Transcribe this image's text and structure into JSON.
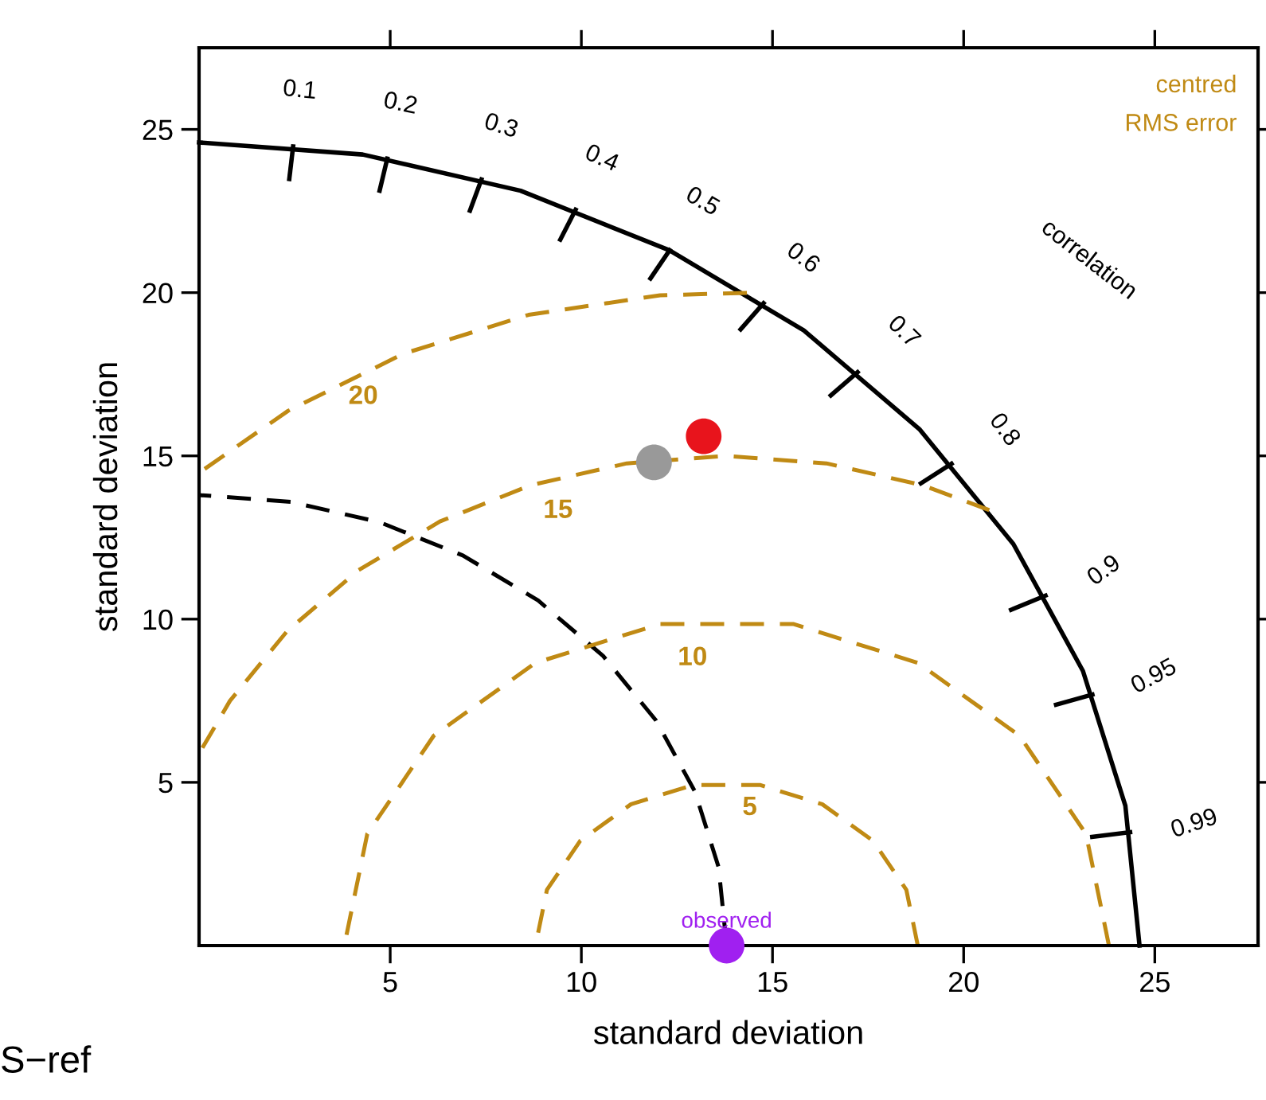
{
  "chart_data": {
    "type": "scatter",
    "xlabel": "standard deviation",
    "ylabel": "standard deviation",
    "xlim": [
      0,
      27.7
    ],
    "ylim": [
      0,
      27.5
    ],
    "xticks": [
      5,
      10,
      15,
      20,
      25
    ],
    "yticks": [
      5,
      10,
      15,
      20,
      25
    ],
    "grid": false,
    "legend": false,
    "series": [
      {
        "type": "line",
        "marker": "none",
        "color": "#000000",
        "line_style": "solid",
        "x": [
          24.6,
          24.23,
          23.12,
          21.3,
          18.84,
          15.82,
          12.3,
          8.41,
          4.28,
          0
        ],
        "values": [
          0,
          4.28,
          8.41,
          12.3,
          15.82,
          18.84,
          21.3,
          23.12,
          24.23,
          24.6
        ]
      },
      {
        "type": "line",
        "marker": "none",
        "color": "#000000",
        "line_style": "dashed",
        "x": [
          13.8,
          13.59,
          12.97,
          11.95,
          10.57,
          8.87,
          6.9,
          4.72,
          2.4,
          0
        ],
        "values": [
          0,
          2.4,
          4.72,
          6.9,
          8.87,
          10.57,
          11.95,
          12.97,
          13.59,
          13.8
        ]
      },
      {
        "type": "line",
        "marker": "none",
        "color": "#c08a14",
        "line_style": "dashed",
        "x": [
          18.8,
          18.5,
          17.63,
          16.3,
          14.67,
          12.93,
          11.3,
          9.97,
          9.1,
          8.8
        ],
        "values": [
          0,
          1.71,
          3.21,
          4.33,
          4.92,
          4.92,
          4.33,
          3.21,
          1.71,
          0
        ]
      },
      {
        "type": "line",
        "marker": "none",
        "color": "#c08a14",
        "line_style": "dashed",
        "x": [
          23.8,
          23.2,
          21.46,
          18.8,
          15.54,
          12.06,
          8.8,
          6.14,
          4.4,
          3.8
        ],
        "values": [
          0,
          3.42,
          6.43,
          8.66,
          9.85,
          9.85,
          8.66,
          6.43,
          3.42,
          0
        ]
      },
      {
        "type": "line",
        "marker": "none",
        "color": "#c08a14",
        "line_style": "dashed",
        "x": [
          20.67,
          18.93,
          16.41,
          13.8,
          11.19,
          8.67,
          6.3,
          4.16,
          2.31,
          0.81,
          0
        ],
        "values": [
          13.34,
          14.1,
          14.77,
          15,
          14.77,
          14.1,
          12.99,
          11.49,
          9.64,
          7.5,
          5.88
        ]
      },
      {
        "type": "line",
        "marker": "none",
        "color": "#c08a14",
        "line_style": "dashed",
        "x": [
          14.33,
          12.06,
          8.62,
          5.35,
          2.33,
          0
        ],
        "values": [
          19.99,
          19.92,
          19.32,
          18.13,
          16.38,
          14.48
        ]
      },
      {
        "marker": "circle",
        "color": "#e8141c",
        "x": [
          13.2
        ],
        "values": [
          15.6
        ]
      },
      {
        "marker": "circle",
        "color": "#999999",
        "x": [
          11.9
        ],
        "values": [
          14.8
        ]
      },
      {
        "marker": "circle",
        "name": "observed",
        "color": "#a020f0",
        "x": [
          13.8
        ],
        "values": [
          0
        ]
      }
    ],
    "annotations": [
      "correlation",
      "centred\nRMS error",
      "S−ref",
      "5",
      "10",
      "15",
      "20",
      "0.1",
      "0.2",
      "0.3",
      "0.4",
      "0.5",
      "0.6",
      "0.7",
      "0.8",
      "0.9",
      "0.95",
      "0.99"
    ]
  }
}
